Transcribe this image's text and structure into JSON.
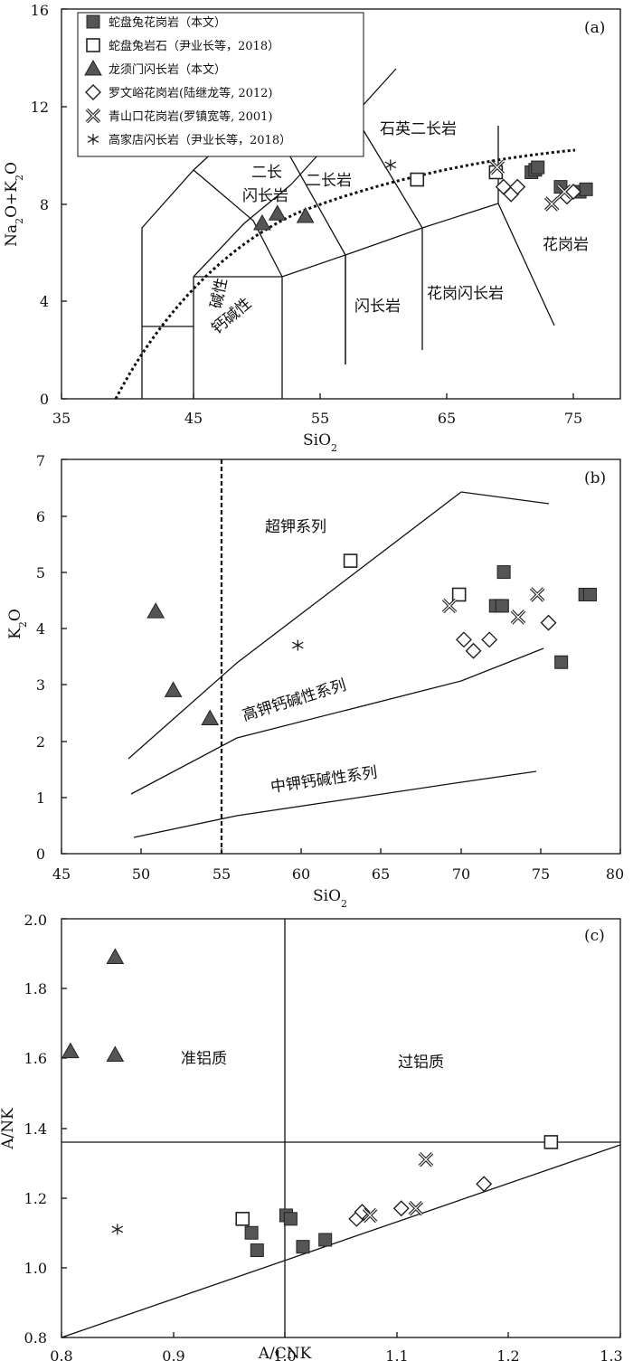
{
  "colors": {
    "filled_marker": "#555555",
    "marker_stroke": "#222222",
    "open_marker": "#ffffff",
    "line": "#111111"
  },
  "chart_data": [
    {
      "type": "scatter",
      "panel_label": "(a)",
      "xlabel": "SiO2",
      "ylabel": "Na2O+K2O",
      "xlim": [
        35,
        79
      ],
      "ylim": [
        0,
        16
      ],
      "xticks": [
        "35",
        "45",
        "55",
        "65",
        "75"
      ],
      "yticks": [
        "0",
        "4",
        "8",
        "12",
        "16"
      ],
      "legend_position": "top-left",
      "legend": [
        {
          "label": "蛇盘兔花岗岩（本文）",
          "marker": "square-filled"
        },
        {
          "label": "蛇盘兔岩石（尹业长等，2018）",
          "marker": "square-open"
        },
        {
          "label": "龙须门闪长岩（本文）",
          "marker": "triangle-filled"
        },
        {
          "label": "罗文峪花岗岩(陆继龙等, 2012)",
          "marker": "diamond-open"
        },
        {
          "label": "青山口花岗岩(罗镇宽等, 2001)",
          "marker": "x"
        },
        {
          "label": "高家店闪长岩（尹业长等，2018）",
          "marker": "asterisk"
        }
      ],
      "field_labels": [
        "石英二长岩",
        "二长",
        "闪长岩",
        "二长岩",
        "花岗岩",
        "闪长岩",
        "花岗闪长岩",
        "碱性",
        "钙碱性"
      ],
      "series": [
        {
          "marker": "square-filled",
          "points": [
            [
              72.0,
              9.3
            ],
            [
              72.3,
              9.4
            ],
            [
              72.5,
              9.5
            ],
            [
              74.3,
              8.7
            ],
            [
              75.8,
              8.5
            ],
            [
              76.3,
              8.6
            ]
          ]
        },
        {
          "marker": "square-open",
          "points": [
            [
              63.0,
              9.0
            ],
            [
              69.2,
              9.3
            ]
          ]
        },
        {
          "marker": "triangle-filled",
          "points": [
            [
              50.8,
              7.2
            ],
            [
              52.0,
              7.6
            ],
            [
              54.2,
              7.5
            ]
          ]
        },
        {
          "marker": "diamond-open",
          "points": [
            [
              69.8,
              8.7
            ],
            [
              70.4,
              8.4
            ],
            [
              70.9,
              8.7
            ],
            [
              74.8,
              8.3
            ],
            [
              75.3,
              8.5
            ]
          ]
        },
        {
          "marker": "x",
          "points": [
            [
              69.3,
              9.5
            ],
            [
              73.6,
              8.0
            ],
            [
              74.6,
              8.5
            ]
          ]
        },
        {
          "marker": "asterisk",
          "points": [
            [
              60.9,
              9.6
            ]
          ]
        }
      ]
    },
    {
      "type": "scatter",
      "panel_label": "(b)",
      "xlabel": "SiO2",
      "ylabel": "K2O",
      "xlim": [
        45,
        80
      ],
      "ylim": [
        0,
        7
      ],
      "xticks": [
        "45",
        "50",
        "55",
        "60",
        "65",
        "70",
        "75",
        "80"
      ],
      "yticks": [
        "0",
        "1",
        "2",
        "3",
        "4",
        "5",
        "6",
        "7"
      ],
      "field_labels": [
        "超钾系列",
        "高钾钙碱性系列",
        "中钾钙碱性系列"
      ],
      "series": [
        {
          "marker": "square-filled",
          "points": [
            [
              72.2,
              4.4
            ],
            [
              72.6,
              4.4
            ],
            [
              72.7,
              5.0
            ],
            [
              76.3,
              3.4
            ],
            [
              77.8,
              4.6
            ],
            [
              78.1,
              4.6
            ]
          ]
        },
        {
          "marker": "square-open",
          "points": [
            [
              63.1,
              5.2
            ],
            [
              69.9,
              4.6
            ]
          ]
        },
        {
          "marker": "triangle-filled",
          "points": [
            [
              50.9,
              4.3
            ],
            [
              52.0,
              2.9
            ],
            [
              54.3,
              2.4
            ]
          ]
        },
        {
          "marker": "diamond-open",
          "points": [
            [
              70.2,
              3.8
            ],
            [
              70.8,
              3.6
            ],
            [
              71.8,
              3.8
            ],
            [
              75.5,
              4.1
            ]
          ]
        },
        {
          "marker": "x",
          "points": [
            [
              69.3,
              4.4
            ],
            [
              73.6,
              4.2
            ],
            [
              74.8,
              4.6
            ]
          ]
        },
        {
          "marker": "asterisk",
          "points": [
            [
              59.8,
              3.7
            ]
          ]
        }
      ]
    },
    {
      "type": "scatter",
      "panel_label": "(c)",
      "xlabel": "A/CNK",
      "ylabel": "A/NK",
      "xlim": [
        0.8,
        1.3
      ],
      "ylim": [
        0.8,
        2.0
      ],
      "xticks": [
        "0.8",
        "0.9",
        "1.0",
        "1.1",
        "1.2",
        "1.3"
      ],
      "yticks": [
        "0.8",
        "1.0",
        "1.2",
        "1.4",
        "1.6",
        "1.8",
        "2.0"
      ],
      "field_labels": [
        "准铝质",
        "过铝质"
      ],
      "series": [
        {
          "marker": "square-filled",
          "points": [
            [
              0.97,
              1.1
            ],
            [
              0.975,
              1.05
            ],
            [
              1.001,
              1.15
            ],
            [
              1.005,
              1.14
            ],
            [
              1.016,
              1.06
            ],
            [
              1.036,
              1.08
            ]
          ]
        },
        {
          "marker": "square-open",
          "points": [
            [
              0.962,
              1.14
            ],
            [
              1.238,
              1.36
            ]
          ]
        },
        {
          "marker": "triangle-filled",
          "points": [
            [
              0.808,
              1.62
            ],
            [
              0.848,
              1.61
            ],
            [
              0.848,
              1.89
            ]
          ]
        },
        {
          "marker": "diamond-open",
          "points": [
            [
              1.064,
              1.14
            ],
            [
              1.069,
              1.16
            ],
            [
              1.104,
              1.17
            ],
            [
              1.178,
              1.24
            ]
          ]
        },
        {
          "marker": "x",
          "points": [
            [
              1.076,
              1.15
            ],
            [
              1.117,
              1.17
            ],
            [
              1.126,
              1.31
            ]
          ]
        },
        {
          "marker": "asterisk",
          "points": [
            [
              0.85,
              1.11
            ]
          ]
        }
      ]
    }
  ]
}
